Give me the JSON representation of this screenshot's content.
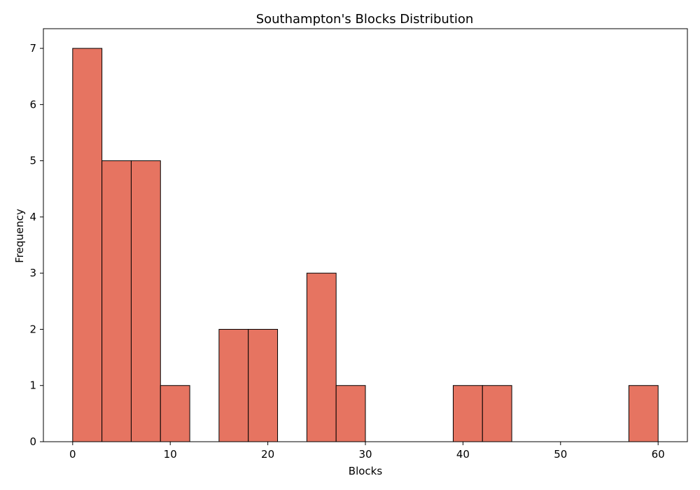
{
  "chart_data": {
    "type": "bar",
    "title": "Southampton's Blocks Distribution",
    "xlabel": "Blocks",
    "ylabel": "Frequency",
    "bin_width": 3,
    "bins": [
      {
        "x0": 0,
        "x1": 3,
        "count": 7
      },
      {
        "x0": 3,
        "x1": 6,
        "count": 5
      },
      {
        "x0": 6,
        "x1": 9,
        "count": 5
      },
      {
        "x0": 9,
        "x1": 12,
        "count": 1
      },
      {
        "x0": 12,
        "x1": 15,
        "count": 0
      },
      {
        "x0": 15,
        "x1": 18,
        "count": 2
      },
      {
        "x0": 18,
        "x1": 21,
        "count": 2
      },
      {
        "x0": 21,
        "x1": 24,
        "count": 0
      },
      {
        "x0": 24,
        "x1": 27,
        "count": 3
      },
      {
        "x0": 27,
        "x1": 30,
        "count": 1
      },
      {
        "x0": 30,
        "x1": 33,
        "count": 0
      },
      {
        "x0": 33,
        "x1": 36,
        "count": 0
      },
      {
        "x0": 36,
        "x1": 39,
        "count": 0
      },
      {
        "x0": 39,
        "x1": 42,
        "count": 1
      },
      {
        "x0": 42,
        "x1": 45,
        "count": 1
      },
      {
        "x0": 45,
        "x1": 48,
        "count": 0
      },
      {
        "x0": 48,
        "x1": 51,
        "count": 0
      },
      {
        "x0": 51,
        "x1": 54,
        "count": 0
      },
      {
        "x0": 54,
        "x1": 57,
        "count": 0
      },
      {
        "x0": 57,
        "x1": 60,
        "count": 1
      }
    ],
    "xlim": [
      -3,
      63
    ],
    "ylim": [
      0,
      7.35
    ],
    "xticks": [
      "0",
      "10",
      "20",
      "30",
      "40",
      "50",
      "60"
    ],
    "yticks": [
      "0",
      "1",
      "2",
      "3",
      "4",
      "5",
      "6",
      "7"
    ],
    "grid": false,
    "colors": {
      "bar_fill": "#e67461",
      "bar_edge": "#000000",
      "axes": "#000000"
    }
  }
}
